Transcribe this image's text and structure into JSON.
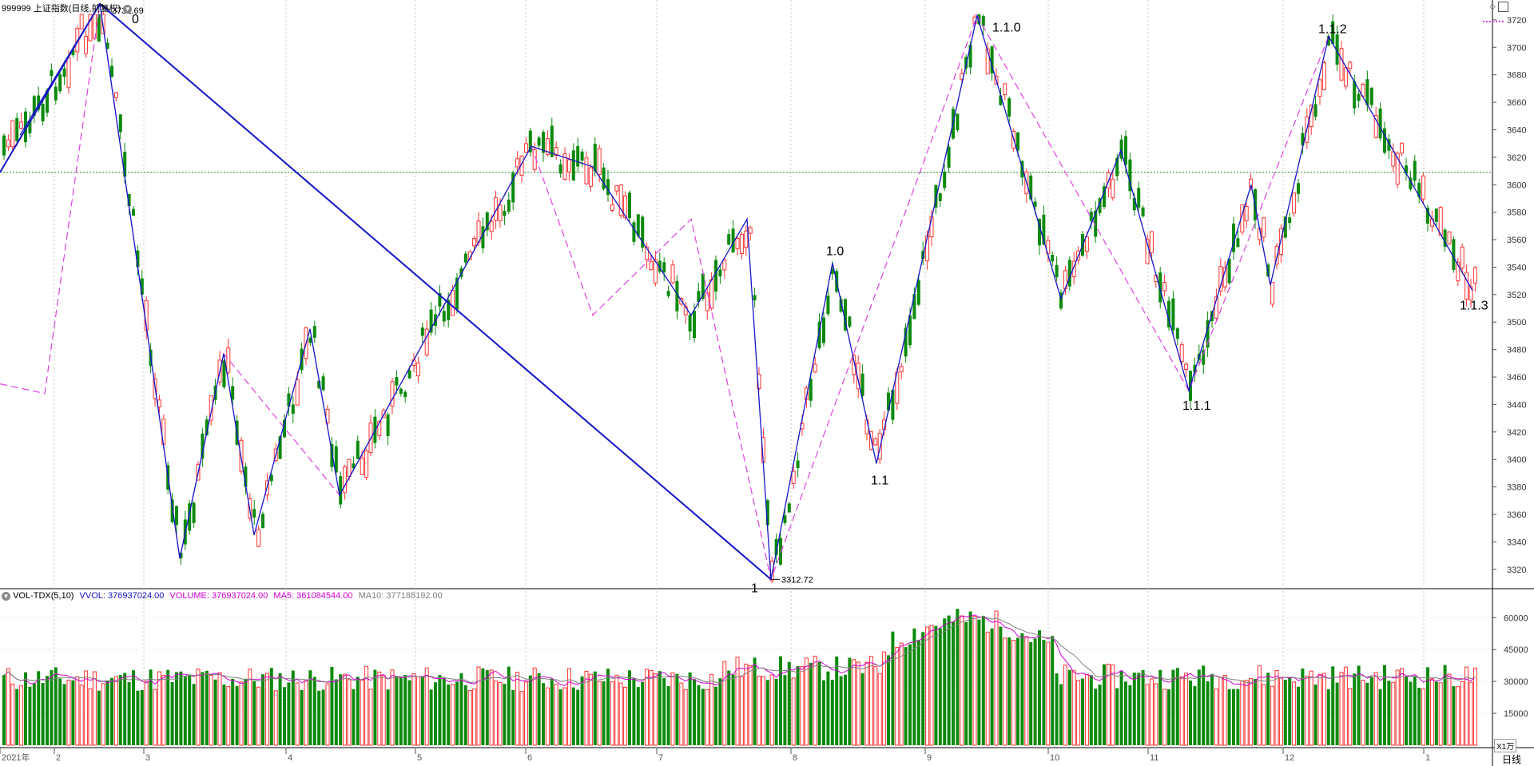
{
  "header": {
    "title": "999999 上证指数(日线,前复权)",
    "menu_icon": "chevron-down-icon",
    "right_icons": [
      "diamond-icon",
      "window-icon"
    ]
  },
  "vol_header": {
    "title": "VOL-TDX(5,10)",
    "vvol": "VVOL: 376937024.00",
    "volume": "VOLUME: 376937024.00",
    "ma5": "MA5: 361084544.00",
    "ma10": "MA10: 377188192.00",
    "unit": "X1万"
  },
  "footer": {
    "period": "日线"
  },
  "colors": {
    "up": "#ff3232",
    "down": "#0b8a0b",
    "zigzag": "#1414c8",
    "dashed": "#e040e0",
    "ref_line": "#2a8a2a",
    "ma5": "#d400d4",
    "ma10": "#808080"
  },
  "chart_data": {
    "type": "candlestick",
    "price_axis": {
      "ticks": [
        3320,
        3340,
        3360,
        3380,
        3400,
        3420,
        3440,
        3460,
        3480,
        3500,
        3520,
        3540,
        3560,
        3580,
        3600,
        3620,
        3640,
        3660,
        3680,
        3700,
        3720
      ],
      "range": [
        3310,
        3724
      ]
    },
    "volume_axis": {
      "ticks": [
        15000,
        30000,
        45000,
        60000
      ],
      "range": [
        0,
        68000
      ]
    },
    "x_labels": [
      "2021年",
      "2",
      "3",
      "4",
      "5",
      "6",
      "7",
      "8",
      "9",
      "10",
      "11",
      "12",
      "1"
    ],
    "reference_price": 3609,
    "marker_high": {
      "label": "3731.69",
      "price": 3731.69
    },
    "marker_low": {
      "label": "3312.72",
      "price": 3312.72
    },
    "wave_labels": [
      {
        "text": "0",
        "price": 3731.69
      },
      {
        "text": "1",
        "price": 3312.72
      },
      {
        "text": "1.0",
        "price": 3543
      },
      {
        "text": "1.1",
        "price": 3397
      },
      {
        "text": "1.1.0",
        "price": 3723
      },
      {
        "text": "1.1.1",
        "price": 3450
      },
      {
        "text": "1.1.2",
        "price": 3708
      },
      {
        "text": "1.1.3",
        "price": 3523
      }
    ],
    "pivots": [
      3636,
      3731.69,
      3328,
      3477,
      3345,
      3495,
      3374,
      3628,
      3613,
      3505,
      3575,
      3312.72,
      3543,
      3397,
      3723,
      3517,
      3625,
      3450,
      3600,
      3527,
      3708,
      3523
    ],
    "dashed_pivots": [
      3455,
      3448,
      3731.69,
      3328,
      3477,
      3374,
      3628,
      3505,
      3575,
      3312.72,
      3723,
      3450,
      3708
    ]
  }
}
